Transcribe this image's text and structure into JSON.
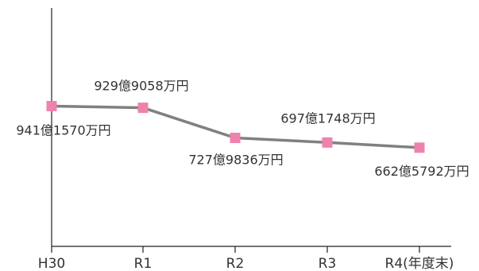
{
  "chart_data": {
    "type": "line",
    "title": "",
    "xlabel": "",
    "ylabel": "",
    "categories": [
      "H30",
      "R1",
      "R2",
      "R3",
      "R4(年度末)"
    ],
    "values": [
      94115700000,
      92990580000,
      72798360000,
      69717480000,
      66257920000
    ],
    "data_labels": [
      "941億1570万円",
      "929億9058万円",
      "727億9836万円",
      "697億1748万円",
      "662億5792万円"
    ],
    "ylim": [
      0,
      160000000000
    ],
    "grid": false,
    "legend": "none",
    "series_color": "#808080",
    "marker_color": "#ef82ad",
    "marker_shape": "square"
  }
}
